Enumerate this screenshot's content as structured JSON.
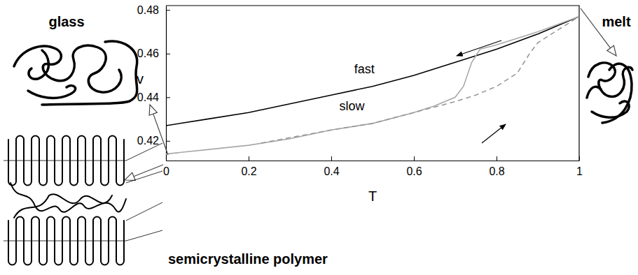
{
  "chart_data": {
    "type": "line",
    "xlabel": "T",
    "ylabel": "v",
    "xlim": [
      0,
      1
    ],
    "ylim": [
      0.411,
      0.482
    ],
    "xticks": [
      0,
      0.2,
      0.4,
      0.6,
      0.8,
      1
    ],
    "yticks": [
      0.42,
      0.44,
      0.46,
      0.48
    ],
    "series": [
      {
        "color": "#000000",
        "line_style": "solid",
        "x": [
          0,
          0.1,
          0.2,
          0.3,
          0.4,
          0.5,
          0.6,
          0.7,
          0.8,
          0.9,
          1
        ],
        "values": [
          0.427,
          0.43,
          0.433,
          0.437,
          0.441,
          0.445,
          0.45,
          0.456,
          0.462,
          0.469,
          0.477
        ]
      },
      {
        "color": "#a8a8a8",
        "line_style": "solid",
        "x": [
          0,
          0.1,
          0.2,
          0.3,
          0.4,
          0.5,
          0.6,
          0.65,
          0.7,
          0.72,
          0.74,
          0.76,
          0.8,
          0.9,
          1
        ],
        "values": [
          0.414,
          0.416,
          0.418,
          0.421,
          0.425,
          0.428,
          0.433,
          0.436,
          0.44,
          0.445,
          0.456,
          0.462,
          0.464,
          0.47,
          0.477
        ]
      },
      {
        "color": "#989898",
        "line_style": "dashed",
        "x": [
          0.23,
          0.4,
          0.5,
          0.6,
          0.7,
          0.75,
          0.8,
          0.85,
          0.88,
          0.9,
          0.95,
          1
        ],
        "values": [
          0.419,
          0.425,
          0.428,
          0.433,
          0.438,
          0.441,
          0.445,
          0.451,
          0.46,
          0.465,
          0.471,
          0.477
        ]
      }
    ],
    "annotations": [
      {
        "text": "fast",
        "x": 0.48,
        "y": 0.451
      },
      {
        "text": "slow",
        "x": 0.45,
        "y": 0.434
      }
    ],
    "illustration_labels": [
      "glass",
      "melt",
      "semicrystalline polymer"
    ]
  }
}
